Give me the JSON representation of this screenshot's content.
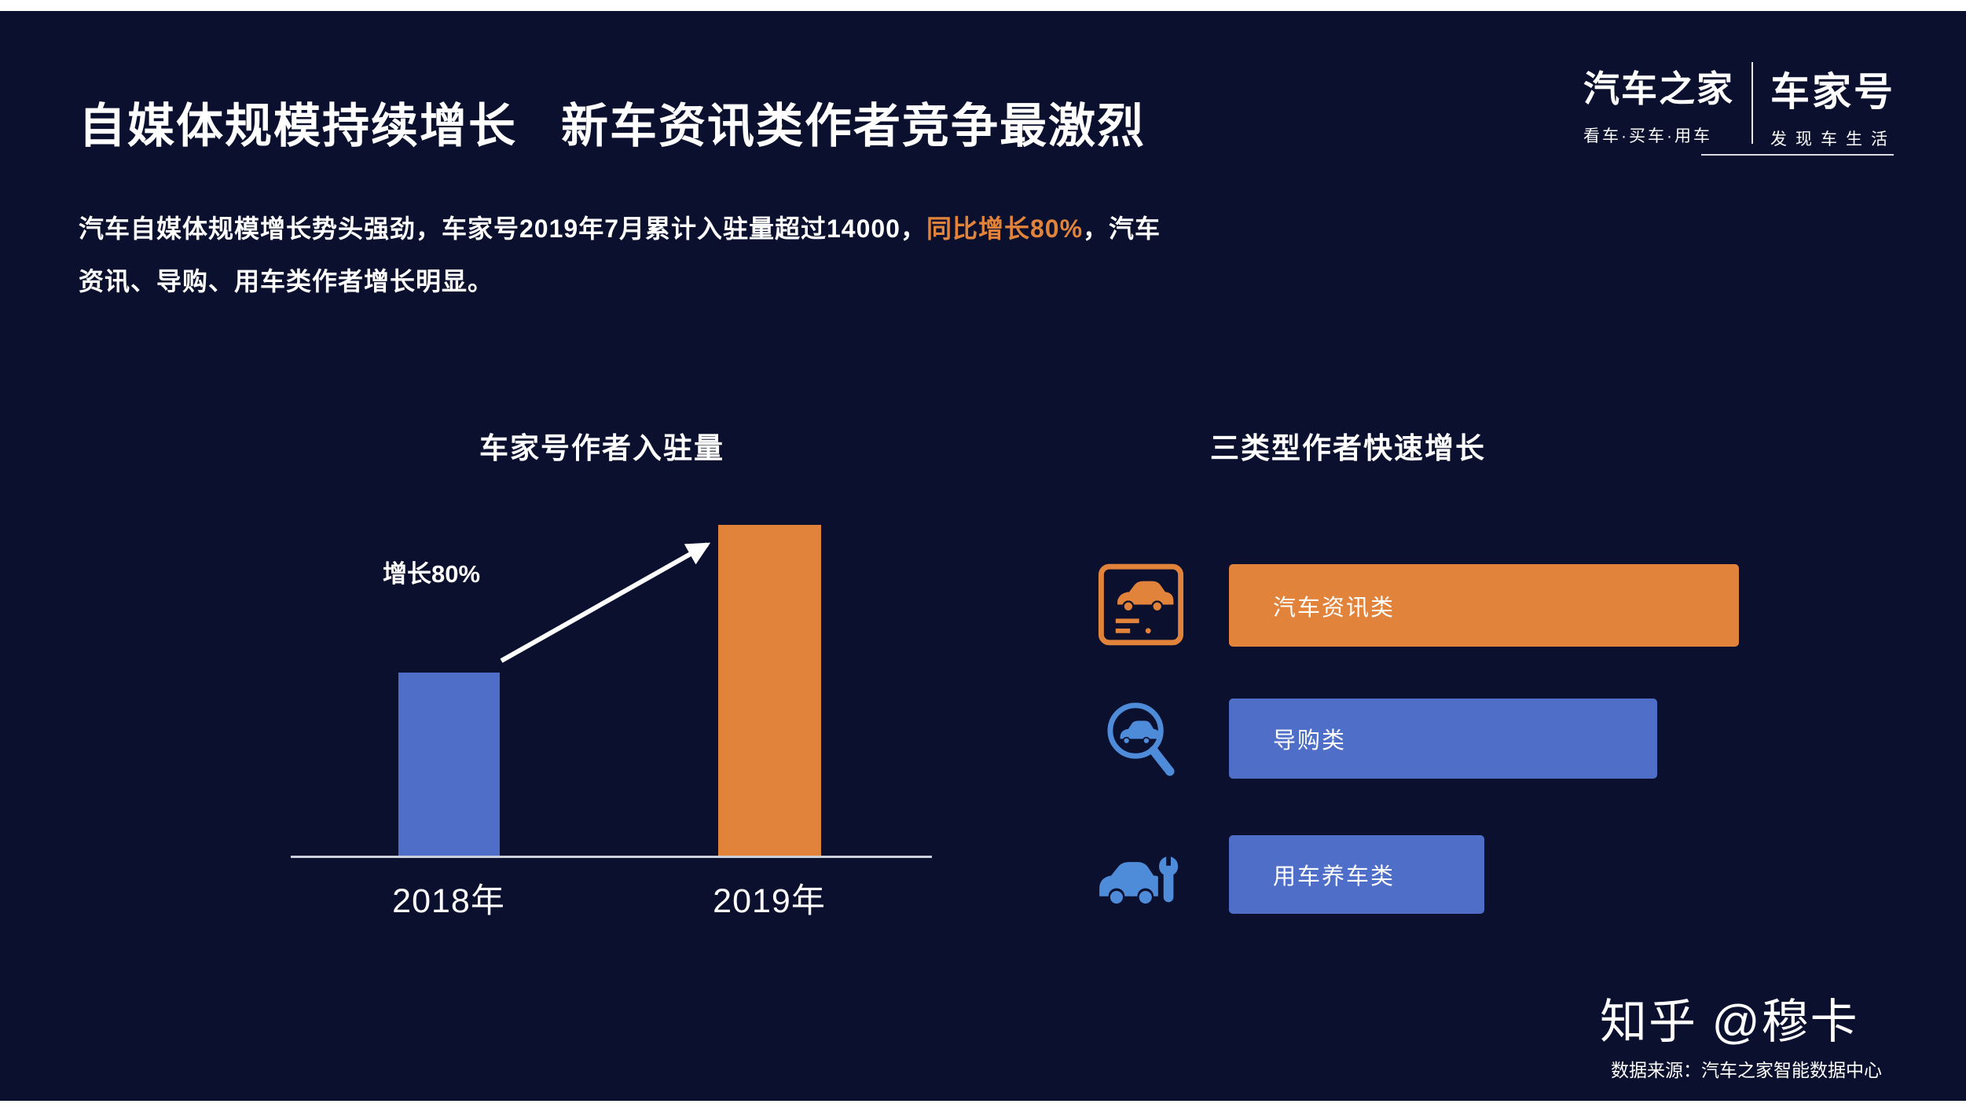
{
  "page": {
    "background": "#0A102E",
    "accent_orange": "#E2833B",
    "accent_blue": "#4E6EC8"
  },
  "header": {
    "title": "自媒体规模持续增长   新车资讯类作者竞争最激烈",
    "logo": {
      "brand": "汽车之家",
      "brand_tagline": "看车·买车·用车",
      "product": "车家号",
      "product_tagline": "发现车生活"
    }
  },
  "intro": {
    "text_before": "汽车自媒体规模增长势头强劲，车家号2019年7月累计入驻量超过14000，",
    "highlight": "同比增长80%",
    "text_after": "，汽车",
    "line2": "资讯、导购、用车类作者增长明显。"
  },
  "growth_chart": {
    "title": "车家号作者入驻量",
    "annotation": "增长80%",
    "bars": [
      {
        "label": "2018年",
        "color": "#4E6EC8"
      },
      {
        "label": "2019年",
        "color": "#E2833B"
      }
    ]
  },
  "category_chart": {
    "title": "三类型作者快速增长",
    "rows": [
      {
        "label": "汽车资讯类",
        "icon": "car-news-icon",
        "color": "#E2833B"
      },
      {
        "label": "导购类",
        "icon": "car-search-icon",
        "color": "#4E6EC8"
      },
      {
        "label": "用车养车类",
        "icon": "car-maintenance-icon",
        "color": "#4E6EC8"
      }
    ]
  },
  "footer": {
    "watermark": "知乎 @穆卡",
    "source": "数据来源：汽车之家智能数据中心"
  },
  "chart_data": [
    {
      "type": "bar",
      "orientation": "vertical",
      "title": "车家号作者入驻量",
      "categories": [
        "2018年",
        "2019年"
      ],
      "values": [
        100,
        180
      ],
      "unit": "relative index (2018 = 100, +80% growth)",
      "annotation": "增长80%",
      "colors": [
        "#4E6EC8",
        "#E2833B"
      ],
      "grid": false,
      "value_axis_visible": false
    },
    {
      "type": "bar",
      "orientation": "horizontal",
      "title": "三类型作者快速增长",
      "categories": [
        "汽车资讯类",
        "导购类",
        "用车养车类"
      ],
      "values": [
        100,
        84,
        50
      ],
      "unit": "relative bar length (汽车资讯类 = 100)",
      "colors": [
        "#E2833B",
        "#4E6EC8",
        "#4E6EC8"
      ],
      "grid": false,
      "value_axis_visible": false
    }
  ]
}
